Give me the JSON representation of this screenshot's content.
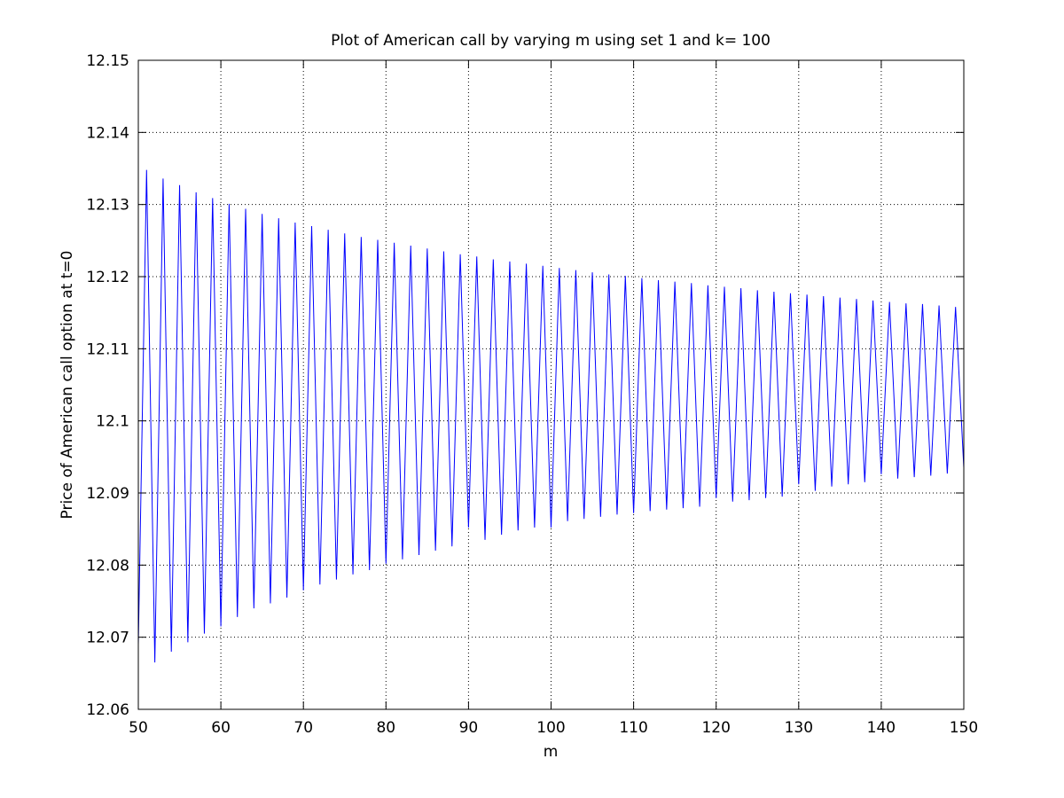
{
  "chart_data": {
    "type": "line",
    "title": "Plot of American call by varying m using set 1 and k=  100",
    "xlabel": "m",
    "ylabel": "Price of American call option at t=0",
    "xlim": [
      50,
      150
    ],
    "ylim": [
      12.06,
      12.15
    ],
    "xticks": [
      "50",
      "60",
      "70",
      "80",
      "90",
      "100",
      "110",
      "120",
      "130",
      "140",
      "150"
    ],
    "yticks": [
      "12.06",
      "12.07",
      "12.08",
      "12.09",
      "12.1",
      "12.11",
      "12.12",
      "12.13",
      "12.14",
      "12.15"
    ],
    "grid": true,
    "line_color": "#0000ff",
    "series": [
      {
        "x": [
          50,
          51,
          52,
          53,
          54,
          55,
          56,
          57,
          58,
          59,
          60,
          61,
          62,
          63,
          64,
          65,
          66,
          67,
          68,
          69,
          70,
          71,
          72,
          73,
          74,
          75,
          76,
          77,
          78,
          79,
          80,
          81,
          82,
          83,
          84,
          85,
          86,
          87,
          88,
          89,
          90,
          91,
          92,
          93,
          94,
          95,
          96,
          97,
          98,
          99,
          100,
          101,
          102,
          103,
          104,
          105,
          106,
          107,
          108,
          109,
          110,
          111,
          112,
          113,
          114,
          115,
          116,
          117,
          118,
          119,
          120,
          121,
          122,
          123,
          124,
          125,
          126,
          127,
          128,
          129,
          130,
          131,
          132,
          133,
          134,
          135,
          136,
          137,
          138,
          139,
          140,
          141,
          142,
          143,
          144,
          145,
          146,
          147,
          148,
          149,
          150
        ],
        "values": [
          12.069,
          12.1348,
          12.0665,
          12.1336,
          12.068,
          12.1327,
          12.0693,
          12.1317,
          12.0705,
          12.1309,
          12.0715,
          12.1301,
          12.0728,
          12.1294,
          12.074,
          12.1287,
          12.0747,
          12.1281,
          12.0755,
          12.1275,
          12.0765,
          12.127,
          12.0773,
          12.1265,
          12.078,
          12.126,
          12.0787,
          12.1255,
          12.0793,
          12.1251,
          12.0802,
          12.1247,
          12.0808,
          12.1243,
          12.0814,
          12.1239,
          12.082,
          12.1235,
          12.0826,
          12.1231,
          12.0852,
          12.1228,
          12.0835,
          12.1224,
          12.0842,
          12.1221,
          12.0848,
          12.1218,
          12.0852,
          12.1215,
          12.0852,
          12.1212,
          12.0861,
          12.1209,
          12.0864,
          12.1206,
          12.0867,
          12.1203,
          12.087,
          12.1201,
          12.0872,
          12.1198,
          12.0875,
          12.1195,
          12.0877,
          12.1193,
          12.0879,
          12.1191,
          12.0881,
          12.1188,
          12.0893,
          12.1186,
          12.0888,
          12.1184,
          12.089,
          12.1181,
          12.0893,
          12.1179,
          12.0895,
          12.1177,
          12.0912,
          12.1175,
          12.0903,
          12.1173,
          12.0909,
          12.1171,
          12.0912,
          12.1169,
          12.0915,
          12.1167,
          12.0926,
          12.1165,
          12.092,
          12.1163,
          12.0922,
          12.1162,
          12.0924,
          12.116,
          12.0927,
          12.1158,
          12.0935
        ]
      }
    ]
  }
}
